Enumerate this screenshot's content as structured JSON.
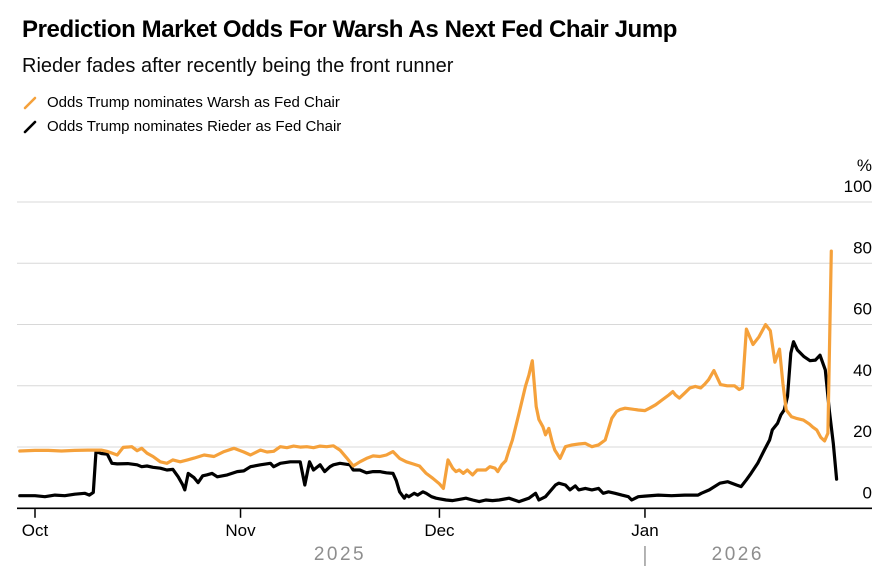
{
  "chart_data": {
    "type": "line",
    "title": "Prediction Market Odds For Warsh As Next Fed Chair Jump",
    "subtitle": "Rieder fades after recently being the front runner",
    "unit": "%",
    "ylim": [
      0,
      100
    ],
    "y_ticks": [
      0,
      20,
      40,
      60,
      80,
      100
    ],
    "x_ticks": [
      {
        "label": "Oct",
        "day": 0
      },
      {
        "label": "Nov",
        "day": 31
      },
      {
        "label": "Dec",
        "day": 61
      },
      {
        "label": "Jan",
        "day": 92
      }
    ],
    "year_labels": [
      {
        "label": "2025",
        "day": 46
      },
      {
        "label": "2026",
        "day": 106
      }
    ],
    "year_divider_day": 92,
    "layout": {
      "grid": true,
      "y_axis_side": "right",
      "legend_position": "top-left",
      "background": "#ffffff"
    },
    "colors": {
      "grid": "#d8d8d8",
      "axis": "#000000",
      "year_text": "#8e8e8e",
      "divider": "#9a9a9a",
      "tick_text": "#000000"
    },
    "x_note": "day offset, 0 = first Oct tick",
    "series": [
      {
        "id": "warsh",
        "name": "Odds Trump nominates Warsh as Fed Chair",
        "color": "#F5A13B",
        "points": [
          [
            -2.3,
            18.7
          ],
          [
            0,
            18.9
          ],
          [
            2,
            18.9
          ],
          [
            4,
            18.7
          ],
          [
            6,
            18.9
          ],
          [
            8,
            19
          ],
          [
            10,
            19
          ],
          [
            11,
            18.5
          ],
          [
            12.4,
            17.4
          ],
          [
            13.3,
            19.9
          ],
          [
            14.6,
            20.1
          ],
          [
            15.4,
            18.8
          ],
          [
            16.1,
            19.6
          ],
          [
            16.9,
            18
          ],
          [
            17.8,
            16.9
          ],
          [
            18.9,
            15.2
          ],
          [
            19.9,
            14.7
          ],
          [
            20.8,
            15.8
          ],
          [
            21.9,
            15.2
          ],
          [
            23,
            15.8
          ],
          [
            24,
            16.4
          ],
          [
            25.5,
            17.4
          ],
          [
            27,
            16.9
          ],
          [
            28.5,
            18.5
          ],
          [
            30,
            19.6
          ],
          [
            31.5,
            18.4
          ],
          [
            32.5,
            17.4
          ],
          [
            34,
            19
          ],
          [
            35,
            18.4
          ],
          [
            36,
            18.6
          ],
          [
            37,
            20.1
          ],
          [
            38,
            19.8
          ],
          [
            39,
            20.3
          ],
          [
            40,
            20
          ],
          [
            41,
            20.1
          ],
          [
            42,
            19.8
          ],
          [
            43,
            20.3
          ],
          [
            44,
            20.1
          ],
          [
            45,
            20.4
          ],
          [
            46,
            19
          ],
          [
            47,
            16.5
          ],
          [
            48,
            13.8
          ],
          [
            49,
            15.2
          ],
          [
            50,
            16.3
          ],
          [
            51,
            17.1
          ],
          [
            52,
            16.9
          ],
          [
            53,
            17.4
          ],
          [
            54,
            18.5
          ],
          [
            55,
            16.3
          ],
          [
            56,
            15.2
          ],
          [
            57,
            14.5
          ],
          [
            58,
            13.8
          ],
          [
            59,
            11.4
          ],
          [
            60,
            9.8
          ],
          [
            61,
            8
          ],
          [
            61.6,
            6.5
          ],
          [
            62.3,
            15.8
          ],
          [
            63,
            13.1
          ],
          [
            63.5,
            12
          ],
          [
            64,
            12.5
          ],
          [
            64.6,
            11.4
          ],
          [
            65.2,
            12.5
          ],
          [
            66,
            10.9
          ],
          [
            66.7,
            12.5
          ],
          [
            68,
            12.5
          ],
          [
            68.6,
            13.6
          ],
          [
            69.4,
            13.1
          ],
          [
            69.8,
            12
          ],
          [
            70.4,
            14.2
          ],
          [
            71,
            15.5
          ],
          [
            71.5,
            19
          ],
          [
            72,
            22.3
          ],
          [
            73,
            31
          ],
          [
            74,
            40
          ],
          [
            74.5,
            43.5
          ],
          [
            75,
            48.2
          ],
          [
            75.6,
            33.2
          ],
          [
            76,
            29
          ],
          [
            76.6,
            26.6
          ],
          [
            77,
            24
          ],
          [
            77.5,
            26.1
          ],
          [
            78,
            21.7
          ],
          [
            78.4,
            19
          ],
          [
            79.2,
            16.3
          ],
          [
            80,
            20.1
          ],
          [
            81,
            20.7
          ],
          [
            82,
            21
          ],
          [
            83,
            21.2
          ],
          [
            84,
            20.1
          ],
          [
            85,
            20.7
          ],
          [
            86,
            22.3
          ],
          [
            87,
            29.4
          ],
          [
            87.7,
            31.6
          ],
          [
            88.3,
            32.3
          ],
          [
            89,
            32.7
          ],
          [
            90,
            32.4
          ],
          [
            91,
            32.1
          ],
          [
            92,
            31.9
          ],
          [
            92.7,
            32.7
          ],
          [
            93.6,
            33.8
          ],
          [
            94.6,
            35.4
          ],
          [
            95.6,
            37
          ],
          [
            96.2,
            38.1
          ],
          [
            96.6,
            37
          ],
          [
            97.2,
            36
          ],
          [
            98,
            37.6
          ],
          [
            98.8,
            39.3
          ],
          [
            99.6,
            39.8
          ],
          [
            100.4,
            39.3
          ],
          [
            101,
            40.5
          ],
          [
            101.6,
            42
          ],
          [
            102.4,
            45
          ],
          [
            103.4,
            40.4
          ],
          [
            104.4,
            40
          ],
          [
            105.5,
            40
          ],
          [
            106.2,
            38.8
          ],
          [
            106.7,
            39.3
          ],
          [
            107.3,
            58.5
          ],
          [
            108.3,
            53.5
          ],
          [
            109.2,
            56
          ],
          [
            110.2,
            60
          ],
          [
            110.9,
            58
          ],
          [
            111.6,
            47.7
          ],
          [
            112.3,
            52
          ],
          [
            112.8,
            40.8
          ],
          [
            113.3,
            32.1
          ],
          [
            114.1,
            29.9
          ],
          [
            114.8,
            29.4
          ],
          [
            115.9,
            28.8
          ],
          [
            116.8,
            27.5
          ],
          [
            117.3,
            26.5
          ],
          [
            117.9,
            25.6
          ],
          [
            118.5,
            23.2
          ],
          [
            119.1,
            22
          ],
          [
            119.6,
            24.5
          ],
          [
            120.1,
            84
          ]
        ]
      },
      {
        "id": "rieder",
        "name": "Odds Trump nominates Rieder as Fed Chair",
        "color": "#000000",
        "points": [
          [
            -2.3,
            4.1
          ],
          [
            0,
            4.1
          ],
          [
            1.5,
            3.8
          ],
          [
            3,
            4.3
          ],
          [
            4.5,
            4.1
          ],
          [
            6,
            4.6
          ],
          [
            7.5,
            4.9
          ],
          [
            8.2,
            4.3
          ],
          [
            8.8,
            5.2
          ],
          [
            9.2,
            18.5
          ],
          [
            10,
            17.9
          ],
          [
            10.9,
            17.7
          ],
          [
            11.6,
            14.7
          ],
          [
            12.4,
            14.5
          ],
          [
            14,
            14.6
          ],
          [
            15.4,
            14.2
          ],
          [
            16.1,
            13.6
          ],
          [
            16.9,
            13.8
          ],
          [
            17.8,
            13.4
          ],
          [
            18.9,
            13.1
          ],
          [
            19.9,
            12.5
          ],
          [
            20.8,
            12.7
          ],
          [
            21.6,
            10.3
          ],
          [
            22.3,
            7.6
          ],
          [
            22.6,
            6
          ],
          [
            23.1,
            11.4
          ],
          [
            24,
            10
          ],
          [
            24.6,
            8.4
          ],
          [
            25.3,
            10.6
          ],
          [
            25.9,
            10.9
          ],
          [
            26.7,
            11.4
          ],
          [
            27.5,
            10.3
          ],
          [
            29,
            10.9
          ],
          [
            30.5,
            12
          ],
          [
            31.5,
            12.2
          ],
          [
            32.5,
            13.6
          ],
          [
            34,
            14.2
          ],
          [
            35.5,
            14.7
          ],
          [
            36,
            13.6
          ],
          [
            37,
            14.7
          ],
          [
            38.5,
            15.2
          ],
          [
            40,
            15.2
          ],
          [
            40.7,
            7.6
          ],
          [
            41.4,
            15.2
          ],
          [
            42,
            12.5
          ],
          [
            43,
            14.2
          ],
          [
            43.7,
            12
          ],
          [
            44.5,
            13.6
          ],
          [
            45,
            14.2
          ],
          [
            46,
            14.7
          ],
          [
            47.5,
            14.2
          ],
          [
            48,
            12.5
          ],
          [
            49,
            12.5
          ],
          [
            50,
            11.6
          ],
          [
            51,
            12
          ],
          [
            52,
            12
          ],
          [
            53,
            11.6
          ],
          [
            54,
            11.4
          ],
          [
            54.5,
            9
          ],
          [
            55,
            5.4
          ],
          [
            55.7,
            3.3
          ],
          [
            56,
            4.3
          ],
          [
            56.4,
            3.8
          ],
          [
            57.2,
            4.9
          ],
          [
            57.7,
            4.3
          ],
          [
            58.5,
            5.4
          ],
          [
            59,
            4.9
          ],
          [
            59.8,
            3.8
          ],
          [
            60.5,
            3.3
          ],
          [
            61,
            3.1
          ],
          [
            62,
            2.7
          ],
          [
            63,
            2.5
          ],
          [
            64,
            2.9
          ],
          [
            65,
            3.3
          ],
          [
            66,
            2.7
          ],
          [
            67,
            2.2
          ],
          [
            68,
            2.7
          ],
          [
            69,
            2.5
          ],
          [
            70,
            2.7
          ],
          [
            71.5,
            3.3
          ],
          [
            73,
            2.2
          ],
          [
            74.5,
            3.3
          ],
          [
            75.5,
            4.9
          ],
          [
            76,
            2.7
          ],
          [
            77,
            3.8
          ],
          [
            78.5,
            7.6
          ],
          [
            79,
            8.2
          ],
          [
            80,
            7.6
          ],
          [
            80.7,
            6
          ],
          [
            81.5,
            7.3
          ],
          [
            82,
            6
          ],
          [
            83,
            6.5
          ],
          [
            84,
            6
          ],
          [
            85,
            6.5
          ],
          [
            85.7,
            4.9
          ],
          [
            86.5,
            5.4
          ],
          [
            87.5,
            4.9
          ],
          [
            88.5,
            4.3
          ],
          [
            89.5,
            3.8
          ],
          [
            90,
            2.7
          ],
          [
            91,
            3.8
          ],
          [
            92,
            4
          ],
          [
            94,
            4.3
          ],
          [
            96,
            4.1
          ],
          [
            98,
            4.3
          ],
          [
            100,
            4.3
          ],
          [
            100.5,
            4.9
          ],
          [
            101.7,
            6
          ],
          [
            103.3,
            8.2
          ],
          [
            104.5,
            8.7
          ],
          [
            105.8,
            7.6
          ],
          [
            106.5,
            7.1
          ],
          [
            107.3,
            9.3
          ],
          [
            108,
            11.4
          ],
          [
            109,
            14.7
          ],
          [
            110,
            19
          ],
          [
            110.8,
            22.3
          ],
          [
            111.2,
            25.6
          ],
          [
            112,
            27.8
          ],
          [
            112.5,
            30.5
          ],
          [
            113,
            32.1
          ],
          [
            113.5,
            36.5
          ],
          [
            114,
            50.6
          ],
          [
            114.4,
            54.4
          ],
          [
            115,
            51.7
          ],
          [
            116,
            49.5
          ],
          [
            116.9,
            48.2
          ],
          [
            117.7,
            48.4
          ],
          [
            118.4,
            50
          ],
          [
            119.2,
            45.2
          ],
          [
            119.8,
            32
          ],
          [
            120.4,
            21.2
          ],
          [
            120.9,
            9.5
          ]
        ]
      }
    ]
  }
}
